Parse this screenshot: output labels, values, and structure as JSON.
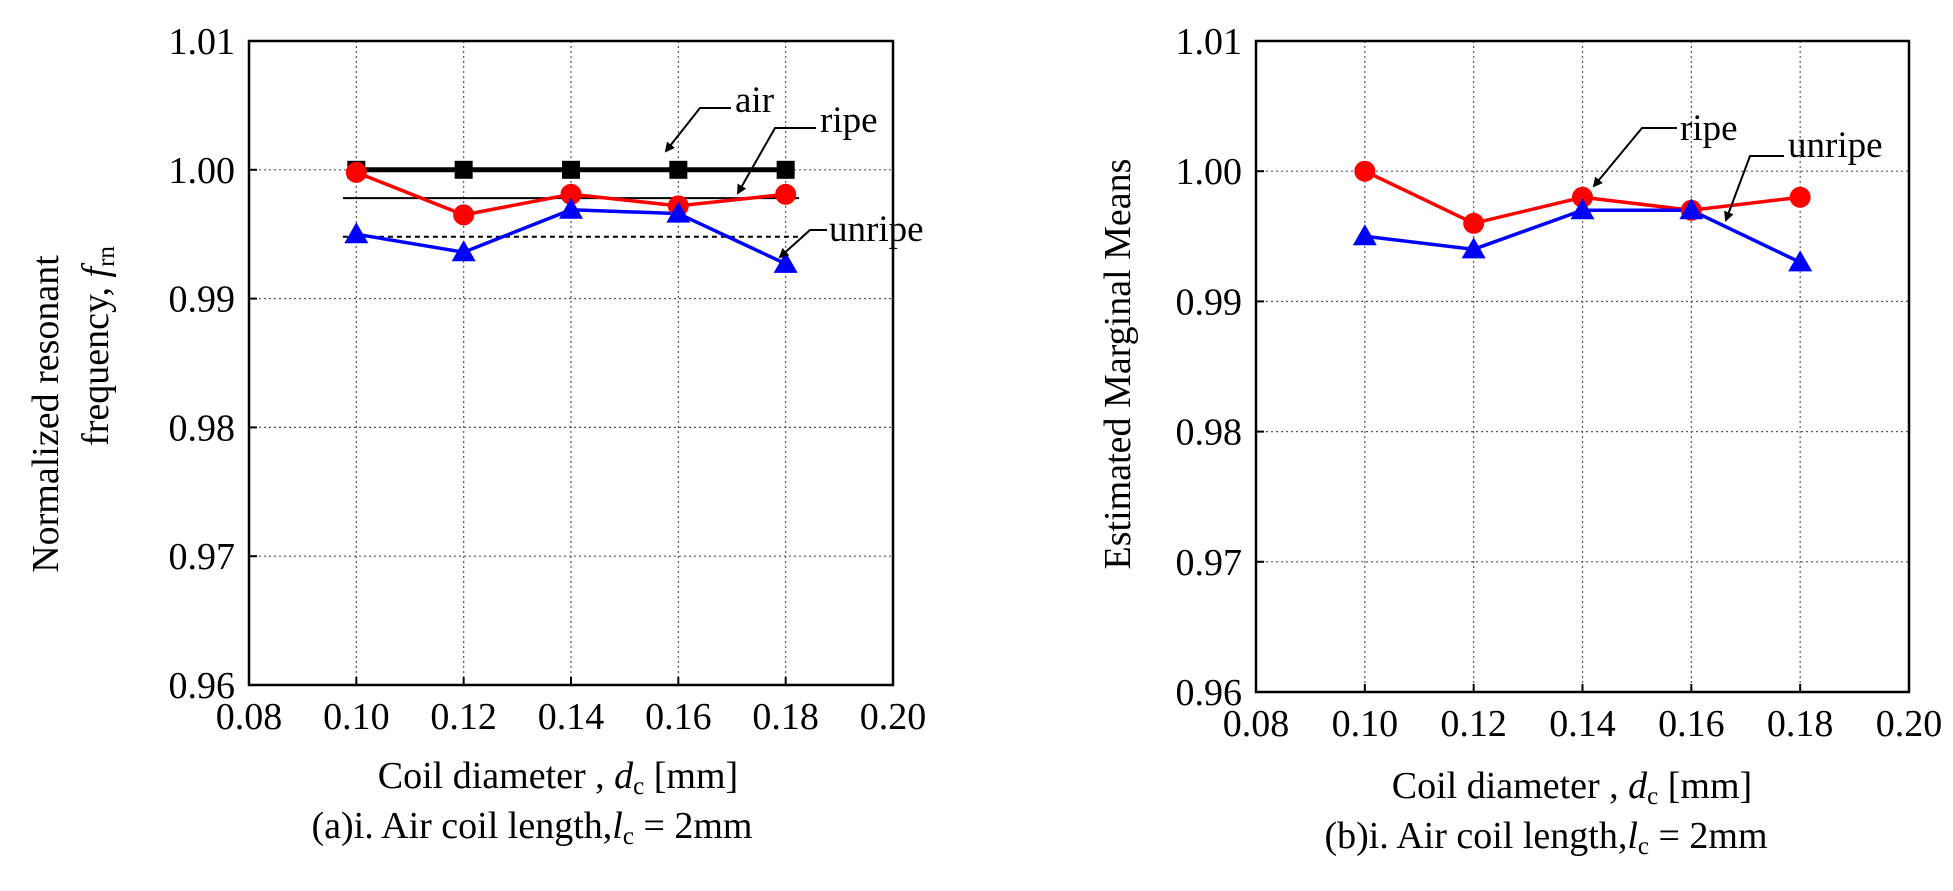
{
  "chart_data": [
    {
      "type": "line",
      "panel": "a",
      "caption": {
        "prefix": "(a)i. Air coil length,",
        "var": "l",
        "sub": "c",
        "suffix": " = 2mm"
      },
      "xlabel": {
        "prefix": "Coil diameter , ",
        "var": "d",
        "sub": "c",
        "suffix": " [mm]"
      },
      "ylabel": {
        "line1": "Normalized resonant",
        "line2_prefix": "frequency, ",
        "var": "f",
        "sub": "rn"
      },
      "xlim": [
        0.08,
        0.2
      ],
      "ylim": [
        0.96,
        1.01
      ],
      "xticks": [
        "0.08",
        "0.10",
        "0.12",
        "0.14",
        "0.16",
        "0.18",
        "0.20"
      ],
      "yticks": [
        "0.96",
        "0.97",
        "0.98",
        "0.99",
        "1.00",
        "1.01"
      ],
      "grid": true,
      "x": [
        0.1,
        0.12,
        0.14,
        0.16,
        0.18
      ],
      "series": [
        {
          "name": "air",
          "color": "#000000",
          "marker": "square",
          "values": [
            1.0,
            1.0,
            1.0,
            1.0,
            1.0
          ]
        },
        {
          "name": "ripe",
          "color": "#ff0000",
          "marker": "circle",
          "values": [
            0.9998,
            0.9965,
            0.9981,
            0.9972,
            0.9981
          ]
        },
        {
          "name": "unripe",
          "color": "#0000ff",
          "marker": "triangle",
          "values": [
            0.995,
            0.9936,
            0.9969,
            0.9966,
            0.9927
          ]
        }
      ],
      "reference_lines": [
        {
          "name": "ripe-mean",
          "style": "solid",
          "y": 0.9978,
          "x": [
            0.0975,
            0.1825
          ]
        },
        {
          "name": "unripe-mean",
          "style": "dashed",
          "y": 0.9948,
          "x": [
            0.0975,
            0.1825
          ]
        }
      ],
      "annotations": [
        "air",
        "ripe",
        "unripe"
      ]
    },
    {
      "type": "line",
      "panel": "b",
      "caption": {
        "prefix": "(b)i. Air coil length,",
        "var": "l",
        "sub": "c",
        "suffix": " = 2mm"
      },
      "xlabel": {
        "prefix": "Coil diameter , ",
        "var": "d",
        "sub": "c",
        "suffix": " [mm]"
      },
      "ylabel": {
        "line1": "Estimated Marginal Means"
      },
      "xlim": [
        0.08,
        0.2
      ],
      "ylim": [
        0.96,
        1.01
      ],
      "xticks": [
        "0.08",
        "0.10",
        "0.12",
        "0.14",
        "0.16",
        "0.18",
        "0.20"
      ],
      "yticks": [
        "0.96",
        "0.97",
        "0.98",
        "0.99",
        "1.00",
        "1.01"
      ],
      "grid": true,
      "x": [
        0.1,
        0.12,
        0.14,
        0.16,
        0.18
      ],
      "series": [
        {
          "name": "ripe",
          "color": "#ff0000",
          "marker": "circle",
          "values": [
            1.0,
            0.996,
            0.998,
            0.997,
            0.998
          ]
        },
        {
          "name": "unripe",
          "color": "#0000ff",
          "marker": "triangle",
          "values": [
            0.995,
            0.994,
            0.997,
            0.997,
            0.993
          ]
        }
      ],
      "reference_lines": [],
      "annotations": [
        "ripe",
        "unripe"
      ]
    }
  ]
}
